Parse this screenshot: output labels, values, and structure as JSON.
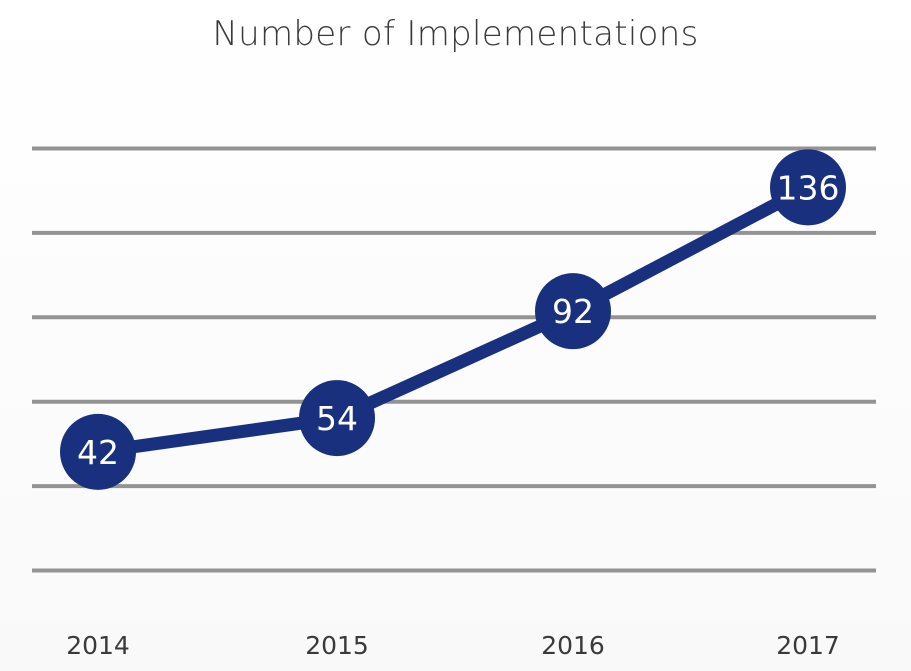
{
  "chart_data": {
    "type": "line",
    "title": "Number of Implementations",
    "xlabel": "",
    "ylabel": "",
    "categories": [
      "2014",
      "2015",
      "2016",
      "2017"
    ],
    "series": [
      {
        "values": [
          42,
          54,
          92,
          136
        ]
      }
    ],
    "data_labels": [
      "42",
      "54",
      "92",
      "136"
    ],
    "ylim": [
      0,
      150
    ],
    "grid": true,
    "legend": "none",
    "colors": {
      "line": "#18307e",
      "marker": "#18307e",
      "gridline": "#939393",
      "text": "#3a3a3a",
      "label_text": "#ffffff"
    }
  }
}
